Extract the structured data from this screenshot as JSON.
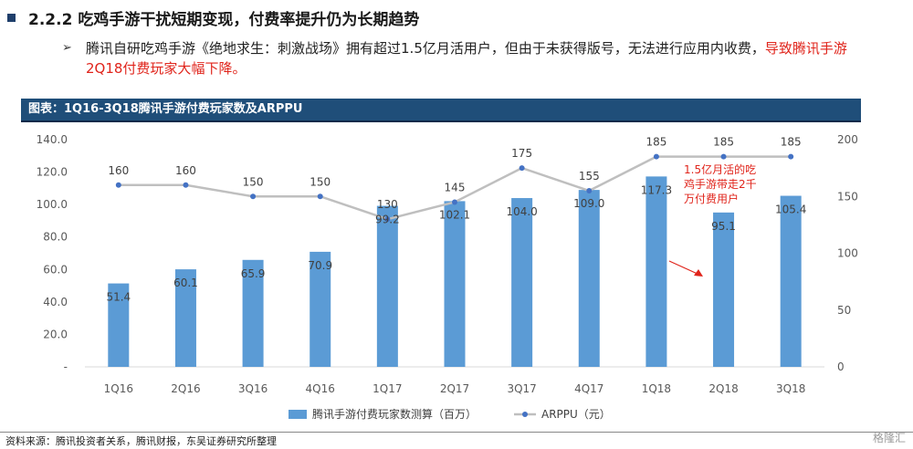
{
  "heading": {
    "text": "2.2.2 吃鸡手游干扰短期变现，付费率提升仍为长期趋势"
  },
  "bullet": {
    "arrow": "➢",
    "text_black": "腾讯自研吃鸡手游《绝地求生：刺激战场》拥有超过1.5亿月活用户，但由于未获得版号，无法进行应用内收费，",
    "text_red": "导致腾讯手游2Q18付费玩家大幅下降。"
  },
  "figure_label": "图表：1Q16-3Q18腾讯手游付费玩家数及ARPPU",
  "chart_data": {
    "type": "bar",
    "categories": [
      "1Q16",
      "2Q16",
      "3Q16",
      "4Q16",
      "1Q17",
      "2Q17",
      "3Q17",
      "4Q17",
      "1Q18",
      "2Q18",
      "3Q18"
    ],
    "series": [
      {
        "name": "腾讯手游付费玩家数测算（百万）",
        "type": "bar",
        "axis": "left",
        "values": [
          51.4,
          60.1,
          65.9,
          70.9,
          99.2,
          102.1,
          104.0,
          109.0,
          117.3,
          95.1,
          105.4
        ],
        "labels": [
          "51.4",
          "60.1",
          "65.9",
          "70.9",
          "99.2",
          "102.1",
          "104.0",
          "109.0",
          "117.3",
          "95.1",
          "105.4"
        ],
        "color": "#5b9bd5"
      },
      {
        "name": "ARPPU（元）",
        "type": "line",
        "axis": "right",
        "values": [
          160,
          160,
          150,
          150,
          130,
          145,
          175,
          155,
          185,
          185,
          185
        ],
        "labels": [
          "160",
          "160",
          "150",
          "150",
          "130",
          "145",
          "175",
          "155",
          "185",
          "185",
          "185"
        ],
        "color": "#bfbfbf",
        "marker_color": "#4472c4"
      }
    ],
    "y_left": {
      "ticks": [
        "-",
        "20.0",
        "40.0",
        "60.0",
        "80.0",
        "100.0",
        "120.0",
        "140.0"
      ],
      "ylim": [
        0,
        140
      ]
    },
    "y_right": {
      "ticks": [
        "0",
        "50",
        "100",
        "150",
        "200"
      ],
      "ylim": [
        0,
        200
      ]
    },
    "legend_position": "bottom",
    "annotation": {
      "lines": [
        "1.5亿月活的吃",
        "鸡手游带走2千",
        "万付费用户"
      ],
      "color": "#e0241b"
    },
    "grid": false
  },
  "footer": {
    "source": "资料来源：腾讯投资者关系，腾讯财报，东吴证券研究所整理",
    "watermark": "格隆汇"
  }
}
